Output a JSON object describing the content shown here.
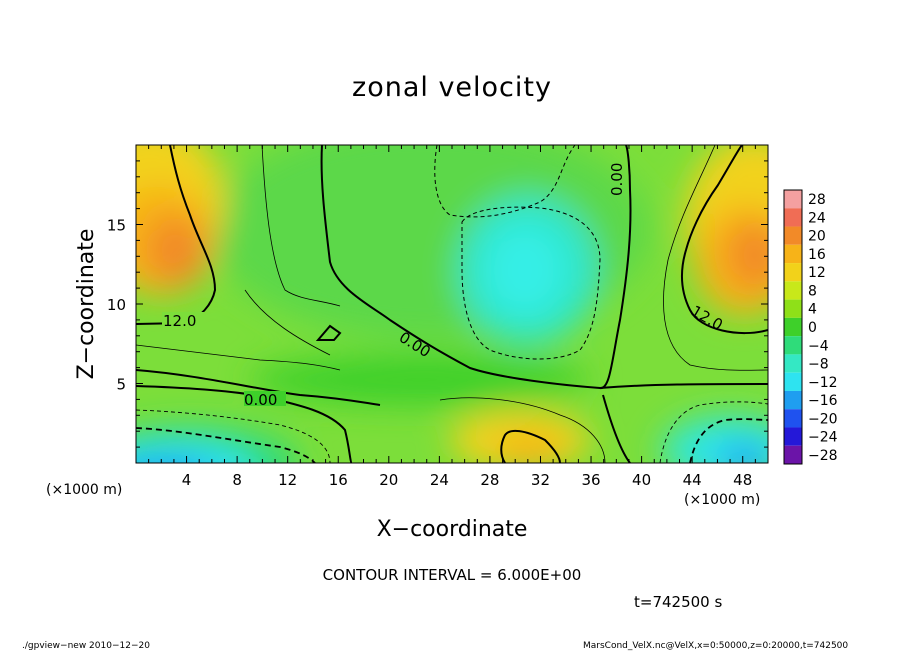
{
  "chart_data": {
    "type": "heatmap",
    "title": "zonal velocity",
    "xlabel": "X−coordinate",
    "ylabel": "Z−coordinate",
    "x_unit": "(×1000 m)",
    "xlim": [
      0,
      50
    ],
    "ylim": [
      0,
      20
    ],
    "x_ticks": [
      4,
      8,
      12,
      16,
      20,
      24,
      28,
      32,
      36,
      40,
      44,
      48
    ],
    "y_ticks": [
      5,
      10,
      15
    ],
    "colorbar": {
      "levels": [
        28,
        24,
        20,
        16,
        12,
        8,
        4,
        0,
        -4,
        -8,
        -12,
        -16,
        -20,
        -24,
        -28
      ],
      "labels": [
        "28",
        "24",
        "20",
        "16",
        "12",
        "8",
        "4",
        "0",
        "−4",
        "−8",
        "−12",
        "−16",
        "−20",
        "−24",
        "−28"
      ],
      "colors": [
        "#f4a0a0",
        "#f06d55",
        "#f28a28",
        "#f7b318",
        "#f2d21a",
        "#c8e81a",
        "#8fe018",
        "#3ed02a",
        "#2fdc7a",
        "#34e8c4",
        "#2ee3f0",
        "#1f9ef0",
        "#1f52ef",
        "#2418d8",
        "#6b14a8"
      ]
    },
    "contour_labels": [
      {
        "text": "12.0",
        "x": 2.6,
        "z": 8.9
      },
      {
        "text": "0.00",
        "x": 9.0,
        "z": 3.9
      },
      {
        "text": "0.00",
        "x": 22.0,
        "z": 6.8
      },
      {
        "text": "0.00",
        "x": 39.0,
        "z": 17.0
      },
      {
        "text": "12.0",
        "x": 45.5,
        "z": 8.8
      }
    ],
    "contour_interval_text": "CONTOUR INTERVAL = 6.000E+00",
    "time_text": "t=742500 s"
  },
  "footer": {
    "left": "./gpview−new  2010−12−20",
    "right": "MarsCond_VelX.nc@VelX,x=0:50000,z=0:20000,t=742500"
  },
  "colors": {
    "contour": "#000000",
    "background": "#ffffff"
  }
}
